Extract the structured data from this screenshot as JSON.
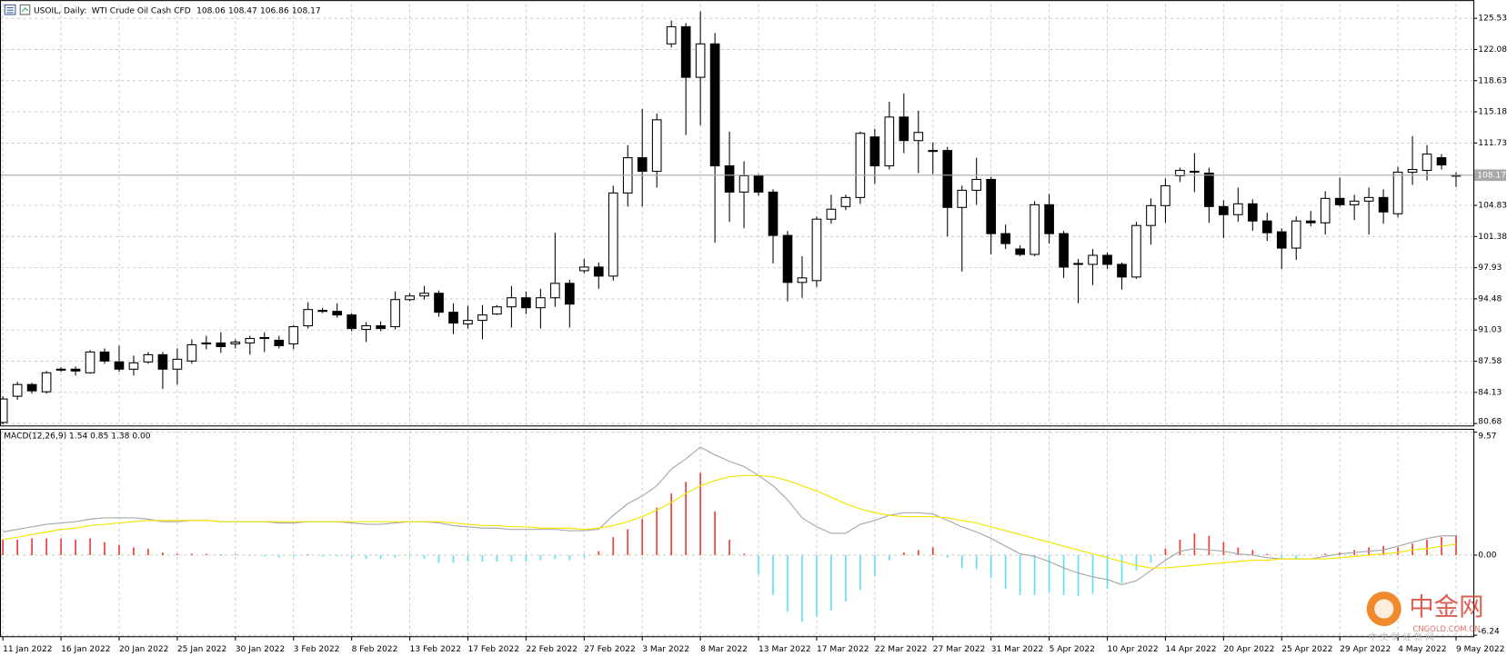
{
  "chart_data": [
    {
      "type": "candlestick",
      "title": "USOIL, Daily:",
      "subtitle": "WTI Crude Oil Cash CFD",
      "categories": [
        "11 Jan 2022",
        null,
        null,
        null,
        "16 Jan 2022",
        null,
        null,
        null,
        "20 Jan 2022",
        null,
        null,
        null,
        "25 Jan 2022",
        null,
        null,
        null,
        "30 Jan 2022",
        null,
        null,
        null,
        "3 Feb 2022",
        null,
        null,
        null,
        "8 Feb 2022",
        null,
        null,
        null,
        "13 Feb 2022",
        null,
        null,
        null,
        "17 Feb 2022",
        null,
        null,
        null,
        "22 Feb 2022",
        null,
        null,
        null,
        "27 Feb 2022",
        null,
        null,
        null,
        "3 Mar 2022",
        null,
        null,
        null,
        "8 Mar 2022",
        null,
        null,
        null,
        "13 Mar 2022",
        null,
        null,
        null,
        "17 Mar 2022",
        null,
        null,
        null,
        "22 Mar 2022",
        null,
        null,
        null,
        "27 Mar 2022",
        null,
        null,
        null,
        "31 Mar 2022",
        null,
        null,
        null,
        "5 Apr 2022",
        null,
        null,
        null,
        "10 Apr 2022",
        null,
        null,
        null,
        "14 Apr 2022",
        null,
        null,
        null,
        "20 Apr 2022",
        null,
        null,
        null,
        "25 Apr 2022",
        null,
        null,
        null,
        "29 Apr 2022",
        null,
        null,
        null,
        "4 May 2022",
        null,
        null,
        null,
        "9 May 2022"
      ],
      "open": [
        80.8,
        83.7,
        85.0,
        84.2,
        86.6,
        86.7,
        86.3,
        88.6,
        87.5,
        86.7,
        87.5,
        88.3,
        86.7,
        87.6,
        89.5,
        89.6,
        89.5,
        89.6,
        90.1,
        89.9,
        89.5,
        91.5,
        93.2,
        93.1,
        92.7,
        91.1,
        91.5,
        91.4,
        94.4,
        94.8,
        95.1,
        93.0,
        91.7,
        92.1,
        92.8,
        93.6,
        94.6,
        93.5,
        94.6,
        96.2,
        97.6,
        98.0,
        97.0,
        106.2,
        110.1,
        108.6,
        122.7,
        124.6,
        119.0,
        122.7,
        109.2,
        106.3,
        108.1,
        106.3,
        101.5,
        96.3,
        96.5,
        103.3,
        104.7,
        105.7,
        112.4,
        109.2,
        114.6,
        112.0,
        110.9,
        110.9,
        104.6,
        106.5,
        107.7,
        101.7,
        100.0,
        99.4,
        104.9,
        101.7,
        98.3,
        98.3,
        99.3,
        98.3,
        96.9,
        102.6,
        104.8,
        108.1,
        108.6,
        108.4,
        104.7,
        103.8,
        105.0,
        103.1,
        101.9,
        100.1,
        103.1,
        102.9,
        105.6,
        104.9,
        105.3,
        105.7,
        103.9,
        108.5,
        108.7,
        110.1,
        108.06
      ],
      "high": [
        83.7,
        85.3,
        85.2,
        86.5,
        86.9,
        87.0,
        88.8,
        89.0,
        89.3,
        88.2,
        88.6,
        88.6,
        89.0,
        90.0,
        90.4,
        90.8,
        90.0,
        90.4,
        90.8,
        90.4,
        91.6,
        94.1,
        93.5,
        94.0,
        92.9,
        91.9,
        92.0,
        95.3,
        95.1,
        95.9,
        95.4,
        94.0,
        93.7,
        93.8,
        93.8,
        95.9,
        95.3,
        95.6,
        101.8,
        96.6,
        98.9,
        98.5,
        107.0,
        111.5,
        115.5,
        115.0,
        125.3,
        125.0,
        126.3,
        123.9,
        113.0,
        109.7,
        108.3,
        106.6,
        102.0,
        99.2,
        103.6,
        106.0,
        106.0,
        113.0,
        113.3,
        116.3,
        117.2,
        115.3,
        111.8,
        111.3,
        107.0,
        110.1,
        108.0,
        102.7,
        100.4,
        105.3,
        106.1,
        102.0,
        98.9,
        100.0,
        99.6,
        98.5,
        103.0,
        105.6,
        107.8,
        109.0,
        110.6,
        109.0,
        105.4,
        106.8,
        105.5,
        104.0,
        102.3,
        103.6,
        104.2,
        106.4,
        107.9,
        106.0,
        106.8,
        106.6,
        109.1,
        112.5,
        111.5,
        110.5,
        108.47
      ],
      "low": [
        80.6,
        83.3,
        84.0,
        84.0,
        86.4,
        86.0,
        86.2,
        87.3,
        86.4,
        86.0,
        87.3,
        84.5,
        85.0,
        87.3,
        88.9,
        88.5,
        89.0,
        88.3,
        88.6,
        89.0,
        88.9,
        91.2,
        92.9,
        92.4,
        90.9,
        89.7,
        90.9,
        91.1,
        94.2,
        94.4,
        92.5,
        90.6,
        91.2,
        90.0,
        92.7,
        91.3,
        92.8,
        91.2,
        93.6,
        91.3,
        97.3,
        95.6,
        96.5,
        104.7,
        104.7,
        106.8,
        122.3,
        112.6,
        113.7,
        100.7,
        103.0,
        102.3,
        105.9,
        98.4,
        94.2,
        94.6,
        95.8,
        102.8,
        104.3,
        105.0,
        107.2,
        108.8,
        110.6,
        108.4,
        108.3,
        101.4,
        97.5,
        104.9,
        99.4,
        100.0,
        99.2,
        99.2,
        100.6,
        96.8,
        94.0,
        96.0,
        97.8,
        95.5,
        96.7,
        100.5,
        102.9,
        107.4,
        106.3,
        102.9,
        101.2,
        103.0,
        102.0,
        100.9,
        97.8,
        98.8,
        102.5,
        101.6,
        104.7,
        103.2,
        101.6,
        102.8,
        103.5,
        107.1,
        107.6,
        108.8,
        106.86
      ],
      "close": [
        83.4,
        85.0,
        84.3,
        86.3,
        86.7,
        86.5,
        88.6,
        87.6,
        86.7,
        87.4,
        88.3,
        86.7,
        87.8,
        89.4,
        89.6,
        89.2,
        89.7,
        90.1,
        90.2,
        89.3,
        91.4,
        93.3,
        93.1,
        92.7,
        91.2,
        91.5,
        91.2,
        94.4,
        94.8,
        95.1,
        93.0,
        91.8,
        92.1,
        92.7,
        93.6,
        94.6,
        93.5,
        94.6,
        96.2,
        93.9,
        98.0,
        97.0,
        106.2,
        110.1,
        108.6,
        114.3,
        124.6,
        119.0,
        122.7,
        109.2,
        106.3,
        108.1,
        106.3,
        101.5,
        96.3,
        96.8,
        103.3,
        104.4,
        105.7,
        112.8,
        109.2,
        114.6,
        112.0,
        112.9,
        110.8,
        104.6,
        106.5,
        107.7,
        101.7,
        100.6,
        99.4,
        104.9,
        101.7,
        98.0,
        98.4,
        99.3,
        98.3,
        96.9,
        102.6,
        104.8,
        107.0,
        108.7,
        108.6,
        104.7,
        103.8,
        105.0,
        103.1,
        101.8,
        100.1,
        103.1,
        102.9,
        105.6,
        104.9,
        105.3,
        105.7,
        104.1,
        108.5,
        108.8,
        110.5,
        109.3,
        108.17
      ],
      "up_color": "#ffffff",
      "down_color": "#000000",
      "last_price_color": "#a8a8a8",
      "ylim": [
        80.47,
        127.12
      ],
      "yticks": [
        80.68,
        84.13,
        87.58,
        91.03,
        94.48,
        97.93,
        101.38,
        104.83,
        111.73,
        115.18,
        118.63,
        122.08,
        125.53
      ],
      "grid": true
    },
    {
      "type": "macd",
      "title": "MACD(12,26,9) 1.54 0.85 1.38 0.00",
      "pos_color": "#e8413c",
      "neg_color": "#62e2ee",
      "values": [
        1.2,
        1.2,
        1.3,
        1.3,
        1.3,
        1.2,
        1.3,
        1.0,
        0.8,
        0.6,
        0.5,
        0.2,
        0.1,
        0.1,
        0.1,
        0.05,
        0.05,
        0.0,
        -0.1,
        -0.2,
        -0.1,
        0.05,
        -0.1,
        -0.1,
        -0.2,
        -0.3,
        -0.3,
        -0.2,
        -0.1,
        -0.3,
        -0.6,
        -0.6,
        -0.5,
        -0.5,
        -0.5,
        -0.5,
        -0.5,
        -0.4,
        -0.3,
        -0.4,
        -0.2,
        0.3,
        1.4,
        2.0,
        2.8,
        3.7,
        4.8,
        5.7,
        6.4,
        3.4,
        1.2,
        0.1,
        -1.5,
        -3.1,
        -4.4,
        -5.2,
        -4.8,
        -4.3,
        -3.6,
        -2.7,
        -1.6,
        -0.4,
        0.2,
        0.4,
        0.6,
        -0.2,
        -1.0,
        -1.1,
        -1.8,
        -2.6,
        -3.1,
        -3.1,
        -2.9,
        -3.1,
        -3.2,
        -3.0,
        -2.6,
        -2.2,
        -1.2,
        -0.6,
        0.5,
        1.2,
        1.7,
        1.5,
        1.0,
        0.6,
        0.4,
        0.1,
        -0.2,
        -0.3,
        0.0,
        0.1,
        0.2,
        0.4,
        0.6,
        0.7,
        0.6,
        0.9,
        1.2,
        1.4,
        1.54
      ],
      "series": [
        {
          "color": "#a9a9a9",
          "values": [
            1.8,
            2.0,
            2.2,
            2.4,
            2.5,
            2.6,
            2.8,
            2.9,
            2.9,
            2.9,
            2.8,
            2.6,
            2.6,
            2.7,
            2.7,
            2.6,
            2.6,
            2.6,
            2.6,
            2.5,
            2.5,
            2.6,
            2.6,
            2.6,
            2.5,
            2.4,
            2.4,
            2.5,
            2.6,
            2.6,
            2.5,
            2.3,
            2.2,
            2.1,
            2.1,
            2.0,
            2.0,
            2.0,
            2.0,
            1.9,
            1.9,
            2.0,
            3.1,
            4.0,
            4.6,
            5.4,
            6.7,
            7.5,
            8.4,
            7.8,
            7.3,
            6.9,
            6.2,
            5.4,
            4.3,
            2.9,
            2.2,
            1.7,
            1.7,
            2.4,
            2.7,
            3.1,
            3.3,
            3.3,
            3.2,
            2.7,
            2.2,
            1.8,
            1.3,
            0.7,
            0.1,
            -0.1,
            -0.5,
            -1.0,
            -1.4,
            -1.7,
            -1.9,
            -2.3,
            -2.0,
            -1.2,
            -0.4,
            0.3,
            0.5,
            0.4,
            0.3,
            0.1,
            0.0,
            -0.2,
            -0.3,
            -0.3,
            -0.3,
            -0.1,
            0.1,
            0.2,
            0.3,
            0.4,
            0.7,
            1.0,
            1.3,
            1.5,
            1.5
          ]
        },
        {
          "color": "#f2e600",
          "values": [
            1.2,
            1.4,
            1.6,
            1.8,
            2.0,
            2.1,
            2.3,
            2.4,
            2.5,
            2.6,
            2.7,
            2.7,
            2.7,
            2.7,
            2.7,
            2.6,
            2.6,
            2.6,
            2.6,
            2.6,
            2.6,
            2.6,
            2.6,
            2.6,
            2.6,
            2.6,
            2.6,
            2.6,
            2.6,
            2.6,
            2.6,
            2.5,
            2.4,
            2.3,
            2.3,
            2.2,
            2.2,
            2.1,
            2.1,
            2.1,
            2.0,
            2.1,
            2.3,
            2.6,
            3.0,
            3.5,
            4.1,
            4.8,
            5.4,
            5.8,
            6.1,
            6.2,
            6.2,
            6.1,
            5.8,
            5.4,
            5.0,
            4.5,
            4.0,
            3.6,
            3.3,
            3.1,
            3.0,
            3.0,
            3.0,
            2.9,
            2.7,
            2.5,
            2.2,
            1.9,
            1.6,
            1.3,
            1.0,
            0.7,
            0.4,
            0.1,
            -0.2,
            -0.5,
            -0.8,
            -1.0,
            -1.0,
            -0.9,
            -0.8,
            -0.7,
            -0.6,
            -0.5,
            -0.4,
            -0.4,
            -0.3,
            -0.3,
            -0.3,
            -0.3,
            -0.2,
            -0.1,
            0.0,
            0.1,
            0.2,
            0.4,
            0.5,
            0.7,
            0.85
          ]
        }
      ],
      "ylim": [
        -6.24,
        9.57
      ],
      "yticks": [
        -6.24,
        {
          "value": 0,
          "label": "0.00"
        },
        9.57
      ],
      "grid": true
    }
  ],
  "watermark": {
    "name": "中金网",
    "site": "CNGOLD.COM.CN",
    "tagline": "中 文 财 经 新 闻"
  }
}
